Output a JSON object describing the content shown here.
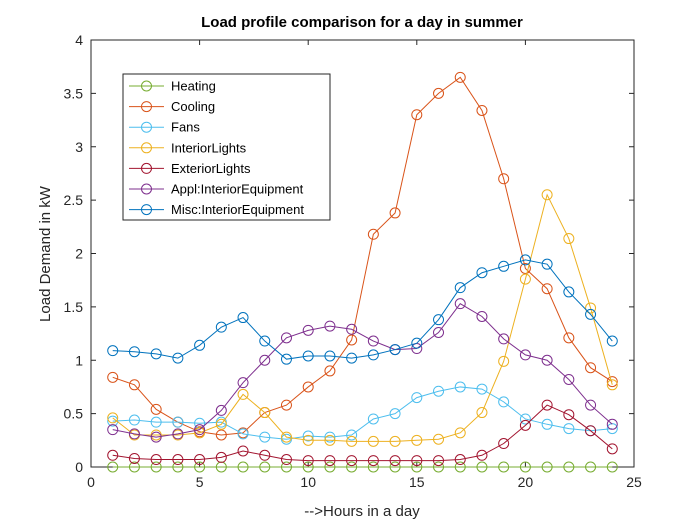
{
  "chart_data": {
    "type": "line",
    "title": "Load profile comparison for a day in summer",
    "xlabel": "-->Hours in a day",
    "ylabel": "Load Demand in kW",
    "xlim": [
      0,
      25
    ],
    "ylim": [
      0,
      4
    ],
    "xticks": [
      0,
      5,
      10,
      15,
      20,
      25
    ],
    "yticks": [
      0,
      0.5,
      1,
      1.5,
      2,
      2.5,
      3,
      3.5,
      4
    ],
    "ytick_labels": [
      "0",
      "0.5",
      "1",
      "1.5",
      "2",
      "2.5",
      "3",
      "3.5",
      "4"
    ],
    "grid": false,
    "legend_position": "top-left",
    "x": [
      1,
      2,
      3,
      4,
      5,
      6,
      7,
      8,
      9,
      10,
      11,
      12,
      13,
      14,
      15,
      16,
      17,
      18,
      19,
      20,
      21,
      22,
      23,
      24
    ],
    "series": [
      {
        "name": "Heating",
        "color": "#77AC30",
        "values": [
          0,
          0,
          0,
          0,
          0,
          0,
          0,
          0,
          0,
          0,
          0,
          0,
          0,
          0,
          0,
          0,
          0,
          0,
          0,
          0,
          0,
          0,
          0,
          0
        ]
      },
      {
        "name": "Cooling",
        "color": "#D95319",
        "values": [
          0.84,
          0.77,
          0.54,
          0.42,
          0.33,
          0.3,
          0.32,
          0.51,
          0.58,
          0.75,
          0.9,
          1.19,
          2.18,
          2.38,
          3.3,
          3.5,
          3.65,
          3.34,
          2.7,
          1.86,
          1.67,
          1.21,
          0.93,
          0.8
        ]
      },
      {
        "name": "Fans",
        "color": "#4DBEEE",
        "values": [
          0.43,
          0.44,
          0.42,
          0.42,
          0.41,
          0.42,
          0.31,
          0.28,
          0.26,
          0.29,
          0.28,
          0.3,
          0.45,
          0.5,
          0.65,
          0.71,
          0.75,
          0.73,
          0.61,
          0.45,
          0.4,
          0.36,
          0.34,
          0.36
        ]
      },
      {
        "name": "InteriorLights",
        "color": "#EDB120",
        "values": [
          0.46,
          0.3,
          0.3,
          0.3,
          0.32,
          0.4,
          0.68,
          0.51,
          0.28,
          0.25,
          0.25,
          0.24,
          0.24,
          0.24,
          0.25,
          0.26,
          0.32,
          0.51,
          0.99,
          1.76,
          2.55,
          2.14,
          1.49,
          0.77
        ]
      },
      {
        "name": "ExteriorLights",
        "color": "#A2142F",
        "values": [
          0.11,
          0.08,
          0.07,
          0.07,
          0.07,
          0.09,
          0.15,
          0.11,
          0.07,
          0.06,
          0.06,
          0.06,
          0.06,
          0.06,
          0.06,
          0.06,
          0.07,
          0.11,
          0.22,
          0.39,
          0.58,
          0.49,
          0.34,
          0.17
        ]
      },
      {
        "name": "Appl:InteriorEquipment",
        "color": "#7E2F8E",
        "values": [
          0.35,
          0.31,
          0.28,
          0.31,
          0.35,
          0.53,
          0.79,
          1.0,
          1.21,
          1.28,
          1.32,
          1.29,
          1.18,
          1.1,
          1.11,
          1.26,
          1.53,
          1.41,
          1.2,
          1.05,
          1.0,
          0.82,
          0.58,
          0.4
        ]
      },
      {
        "name": "Misc:InteriorEquipment",
        "color": "#0072BD",
        "values": [
          1.09,
          1.08,
          1.06,
          1.02,
          1.14,
          1.31,
          1.4,
          1.18,
          1.01,
          1.04,
          1.04,
          1.02,
          1.05,
          1.1,
          1.16,
          1.38,
          1.68,
          1.82,
          1.88,
          1.94,
          1.9,
          1.64,
          1.43,
          1.18
        ]
      }
    ]
  }
}
